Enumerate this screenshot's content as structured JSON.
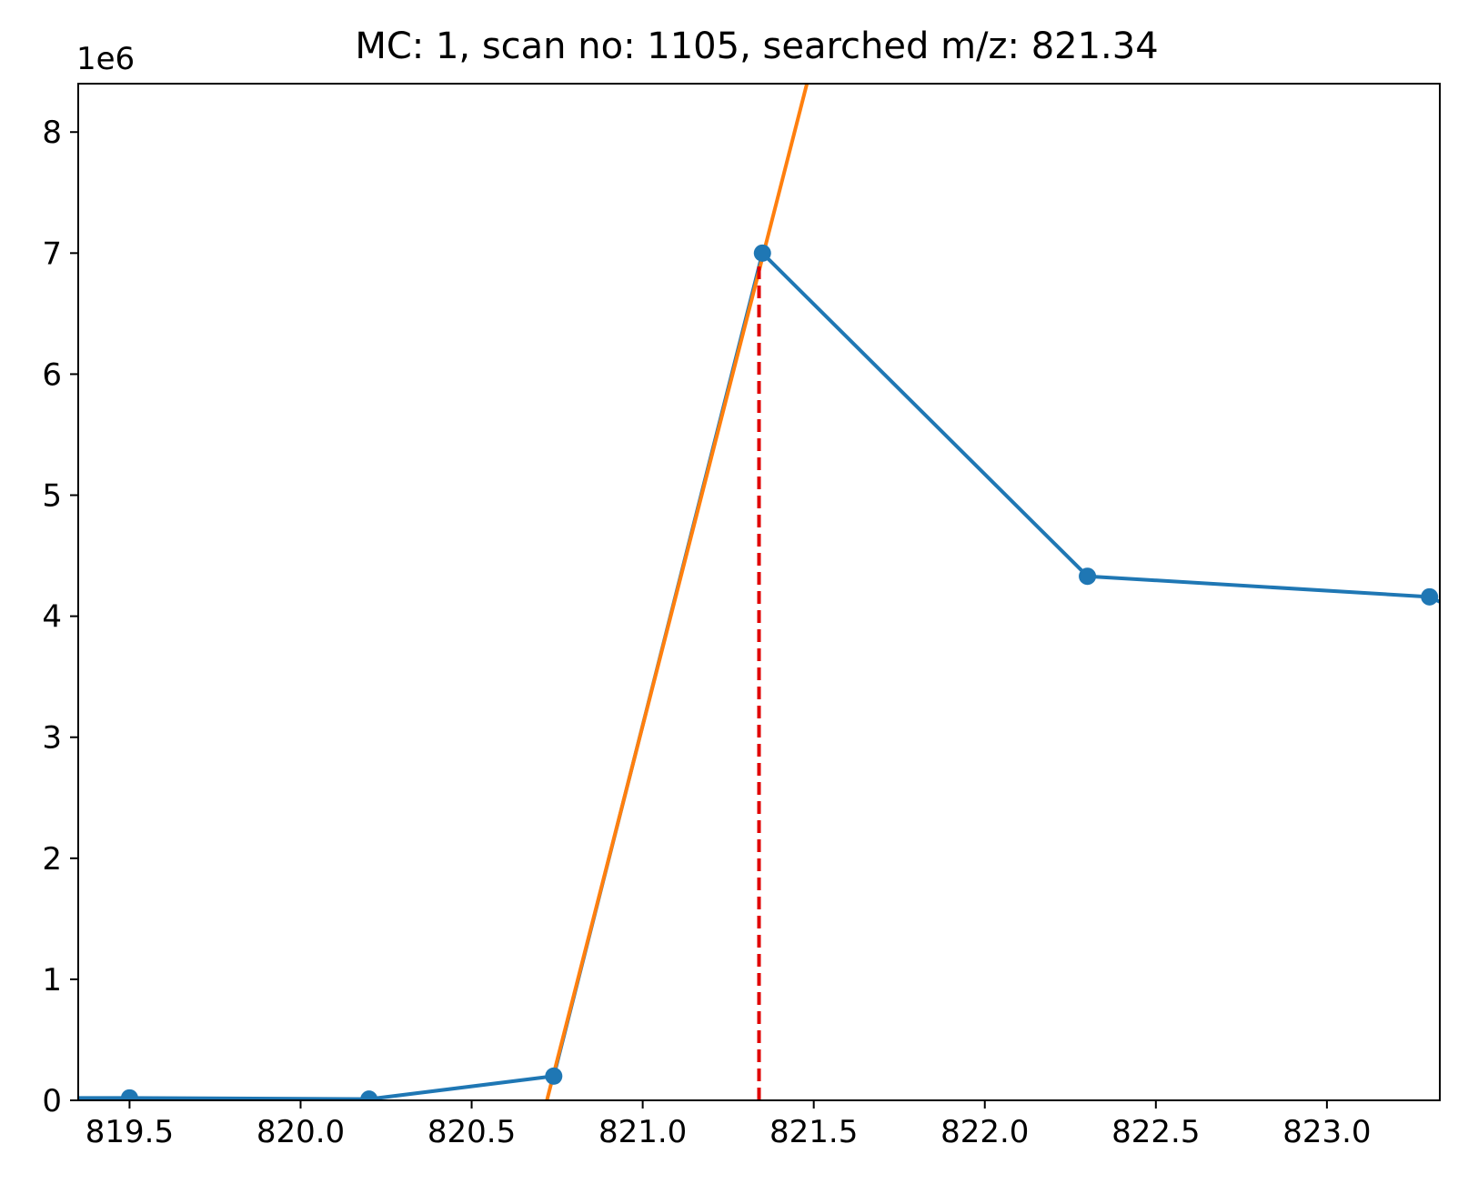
{
  "chart_data": {
    "type": "line",
    "title": "MC: 1, scan no: 1105, searched m/z: 821.34",
    "xlabel": "",
    "ylabel": "",
    "y_offset_label": "1e6",
    "xlim": [
      819.35,
      823.33
    ],
    "ylim": [
      0,
      8.4
    ],
    "y_scale_note": "values in units of 1e6",
    "xticks": [
      819.5,
      820.0,
      820.5,
      821.0,
      821.5,
      822.0,
      822.5,
      823.0
    ],
    "xtick_labels": [
      "819.5",
      "820.0",
      "820.5",
      "821.0",
      "821.5",
      "822.0",
      "822.5",
      "823.0"
    ],
    "yticks": [
      0,
      1,
      2,
      3,
      4,
      5,
      6,
      7,
      8
    ],
    "ytick_labels": [
      "0",
      "1",
      "2",
      "3",
      "4",
      "5",
      "6",
      "7",
      "8"
    ],
    "grid": false,
    "series": [
      {
        "color": "#1f77b4",
        "markers": true,
        "x": [
          819.35,
          819.5,
          820.2,
          820.74,
          821.35,
          822.3,
          823.3,
          823.38
        ],
        "y": [
          0.02,
          0.02,
          0.01,
          0.2,
          7.0,
          4.33,
          4.16,
          4.05
        ],
        "marker_x": [
          819.5,
          820.2,
          820.74,
          821.35,
          822.3,
          823.3
        ],
        "marker_y": [
          0.02,
          0.01,
          0.2,
          7.0,
          4.33,
          4.16
        ]
      },
      {
        "color": "#ff7f0e",
        "markers": false,
        "x": [
          820.72,
          821.48
        ],
        "y": [
          0.0,
          8.4
        ]
      }
    ],
    "vline": {
      "x": 821.34,
      "y_from": 0,
      "y_to": 7.0,
      "color": "#e00000",
      "style": "dashed"
    }
  }
}
